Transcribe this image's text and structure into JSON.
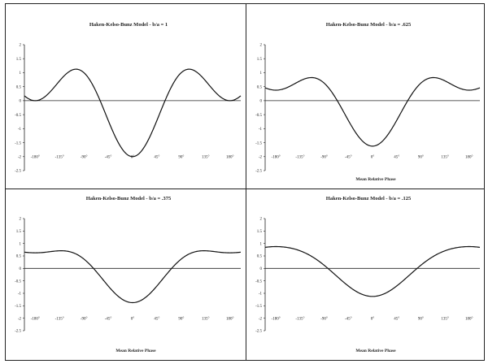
{
  "chart_data": [
    {
      "type": "line",
      "title": "Haken-Kelso-Bunz Model - b/a = 1",
      "xlabel": "",
      "ylabel": "",
      "b_over_a": 1,
      "xlim": [
        -200,
        200
      ],
      "ylim": [
        -2.5,
        2
      ],
      "xticks": [
        "-180°",
        "-135°",
        "-90°",
        "-45°",
        "0°",
        "45°",
        "90°",
        "135°",
        "180°"
      ],
      "yticks": [
        "2",
        "1.5",
        "1",
        "0.5",
        "0",
        "-0.5",
        "-1",
        "-1.5",
        "-2",
        "-2.5"
      ]
    },
    {
      "type": "line",
      "title": "Haken-Kelso-Bunz Model - b/a = .625",
      "xlabel": "Mean Relative Phase",
      "ylabel": "",
      "b_over_a": 0.625,
      "xlim": [
        -200,
        200
      ],
      "ylim": [
        -2.5,
        2
      ],
      "xticks": [
        "-180°",
        "-135°",
        "-90°",
        "-45°",
        "0°",
        "45°",
        "90°",
        "135°",
        "180°"
      ],
      "yticks": [
        "2",
        "1.5",
        "1",
        "0.5",
        "0",
        "-0.5",
        "-1",
        "-1.5",
        "-2",
        "-2.5"
      ]
    },
    {
      "type": "line",
      "title": "Haken-Kelso-Bunz Model - b/a = .375",
      "xlabel": "Mean Relative Phase",
      "ylabel": "",
      "b_over_a": 0.375,
      "xlim": [
        -200,
        200
      ],
      "ylim": [
        -2.5,
        2
      ],
      "xticks": [
        "-180°",
        "-135°",
        "-90°",
        "-45°",
        "0°",
        "45°",
        "90°",
        "135°",
        "180°"
      ],
      "yticks": [
        "2",
        "1.5",
        "1",
        "0.5",
        "0",
        "-0.5",
        "-1",
        "-1.5",
        "-2",
        "-2.5"
      ]
    },
    {
      "type": "line",
      "title": "Haken-Kelso-Bunz Model - b/a = .125",
      "xlabel": "Mean Relative Phase",
      "ylabel": "",
      "b_over_a": 0.125,
      "xlim": [
        -200,
        200
      ],
      "ylim": [
        -2.5,
        2
      ],
      "xticks": [
        "-180°",
        "-135°",
        "-90°",
        "-45°",
        "0°",
        "45°",
        "90°",
        "135°",
        "180°"
      ],
      "yticks": [
        "2",
        "1.5",
        "1",
        "0.5",
        "0",
        "-0.5",
        "-1",
        "-1.5",
        "-2",
        "-2.5"
      ]
    }
  ]
}
